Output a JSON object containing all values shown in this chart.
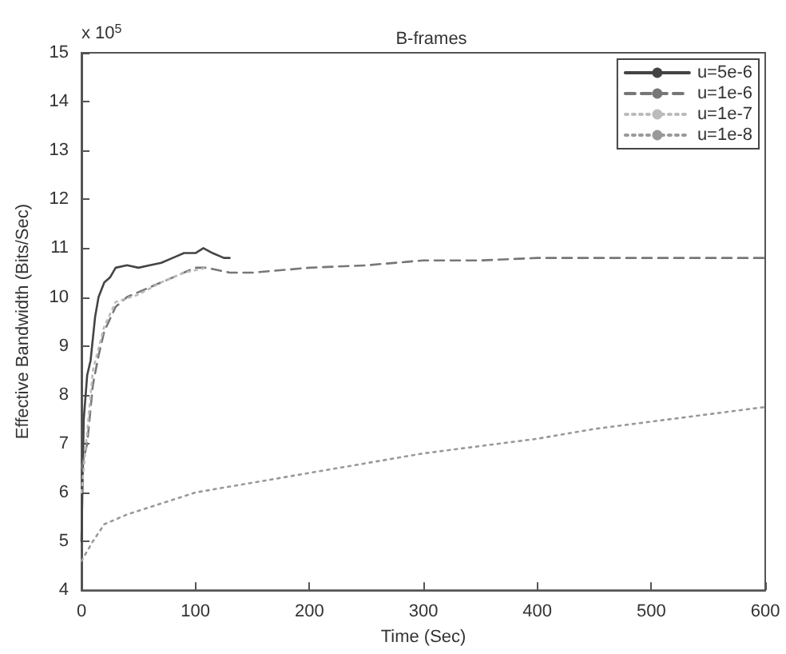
{
  "chart_data": {
    "type": "line",
    "title": "B-frames",
    "xlabel": "Time (Sec)",
    "ylabel": "Effective Bandwidth (Bits/Sec)",
    "annotations": [
      "x 10$^{5}$"
    ],
    "xlim": [
      0,
      600
    ],
    "xticks": [
      0,
      100,
      200,
      300,
      400,
      500,
      600
    ],
    "ylim": [
      4,
      15
    ],
    "yticks": [
      4,
      5,
      6,
      7,
      8,
      9,
      10,
      11,
      12,
      13,
      14,
      15
    ],
    "grid": false,
    "legend": "top right",
    "marker": "none",
    "series": [
      {
        "name": "u=5e-6",
        "color": "#444444",
        "line_style": "solid",
        "x": [
          0,
          2,
          5,
          8,
          12,
          15,
          20,
          25,
          30,
          40,
          50,
          60,
          70,
          80,
          90,
          100,
          107,
          115,
          125,
          130
        ],
        "values": [
          5,
          7.5,
          8.4,
          8.7,
          9.6,
          10.0,
          10.3,
          10.4,
          10.6,
          10.65,
          10.6,
          10.65,
          10.7,
          10.8,
          10.9,
          10.9,
          11.0,
          10.9,
          10.8,
          10.8
        ]
      },
      {
        "name": "u=1e-6",
        "color": "#777777",
        "line_style": "dashed",
        "x": [
          0,
          5,
          10,
          15,
          20,
          30,
          40,
          60,
          80,
          100,
          110,
          130,
          150,
          200,
          250,
          300,
          350,
          400,
          450,
          500,
          550,
          600
        ],
        "values": [
          6.5,
          7.0,
          8.2,
          8.8,
          9.3,
          9.8,
          10.0,
          10.2,
          10.4,
          10.6,
          10.6,
          10.5,
          10.5,
          10.6,
          10.65,
          10.75,
          10.75,
          10.8,
          10.8,
          10.8,
          10.8,
          10.8
        ]
      },
      {
        "name": "u=1e-7",
        "color": "#bbbbbb",
        "line_style": "dotted",
        "x": [
          0,
          10,
          20,
          30,
          50,
          70,
          90,
          110
        ],
        "values": [
          6,
          8.5,
          9.4,
          9.9,
          10.05,
          10.3,
          10.5,
          10.6
        ]
      },
      {
        "name": "u=1e-8",
        "color": "#999999",
        "line_style": "dotted",
        "x": [
          0,
          10,
          20,
          40,
          60,
          100,
          150,
          200,
          250,
          300,
          350,
          400,
          450,
          500,
          550,
          600
        ],
        "values": [
          4.6,
          5.0,
          5.35,
          5.55,
          5.7,
          6.0,
          6.2,
          6.4,
          6.6,
          6.8,
          6.95,
          7.1,
          7.3,
          7.45,
          7.6,
          7.75
        ]
      }
    ]
  }
}
